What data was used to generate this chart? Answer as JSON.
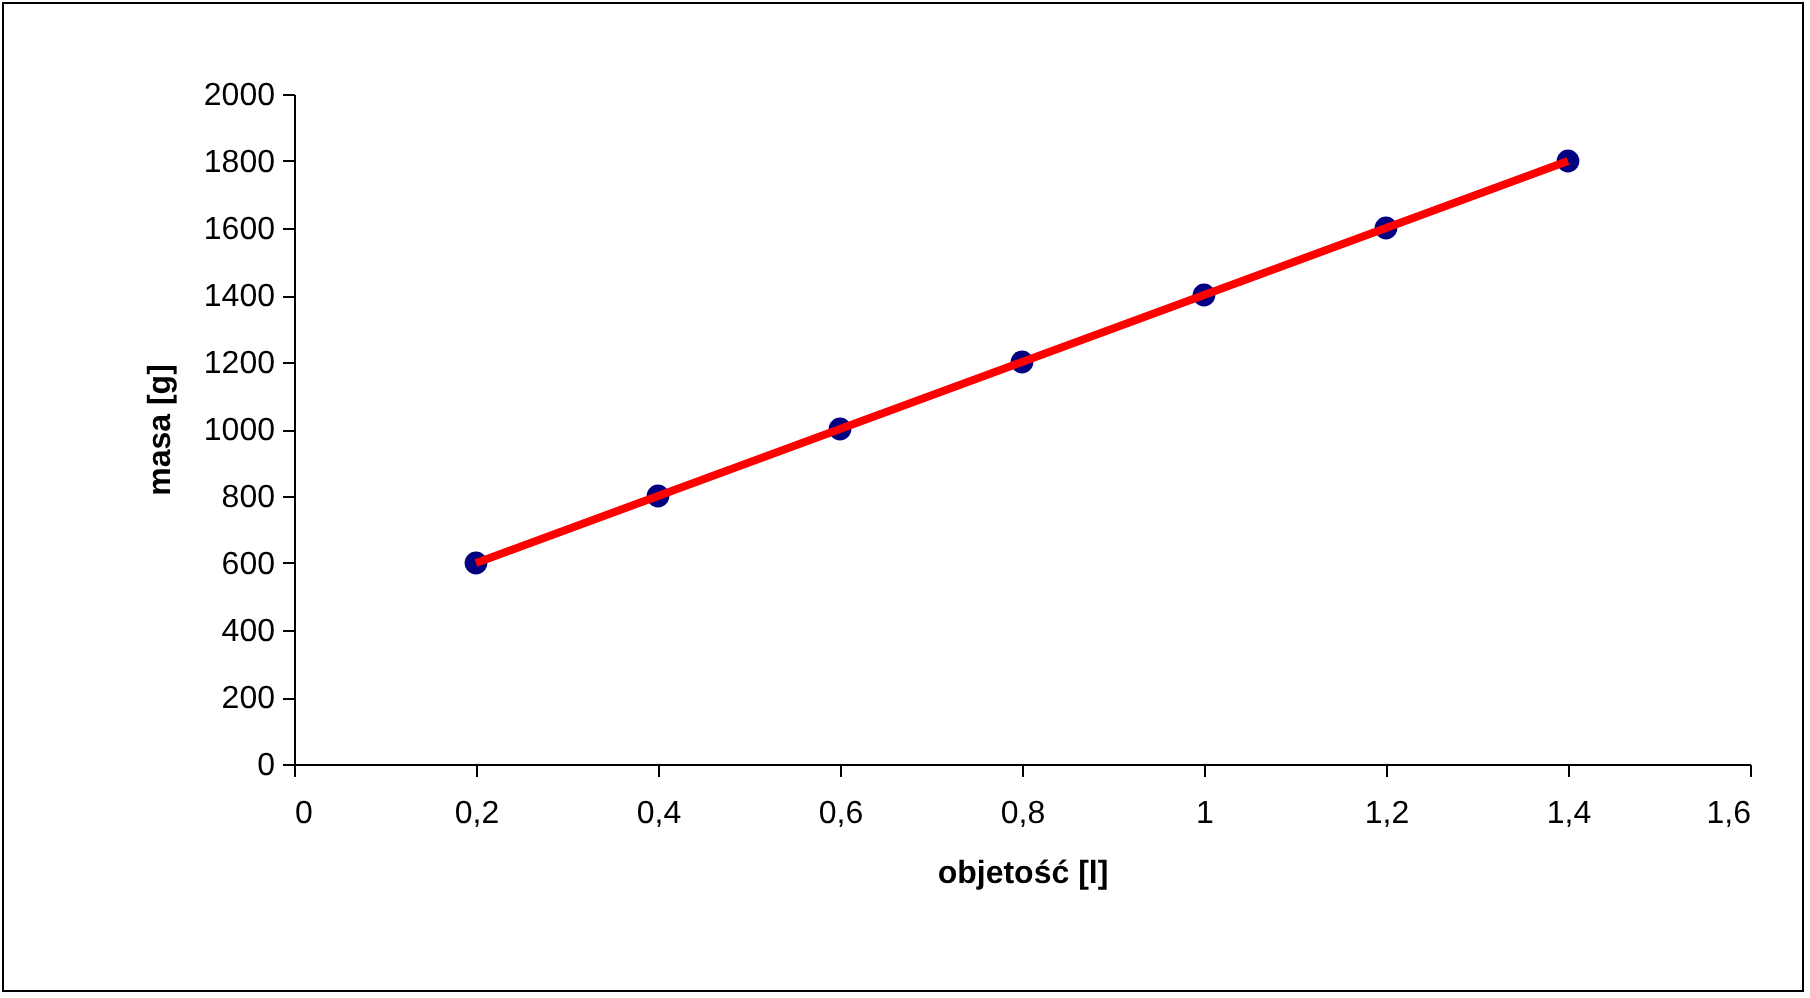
{
  "chart_data": {
    "type": "scatter",
    "xlabel": "objetość [l]",
    "ylabel": "masa [g]",
    "x": [
      0.2,
      0.4,
      0.6,
      0.8,
      1.0,
      1.2,
      1.4
    ],
    "series": [
      {
        "type": "scatter",
        "color": "#000080",
        "marker": "circle",
        "values": [
          600,
          800,
          1000,
          1200,
          1400,
          1600,
          1800
        ]
      },
      {
        "type": "line",
        "color": "#ff0000",
        "line_style": "solid",
        "values": [
          600,
          800,
          1000,
          1200,
          1400,
          1600,
          1800
        ]
      }
    ],
    "xlim": [
      0,
      1.6
    ],
    "xticks": [
      0,
      {
        "value": 0.2,
        "label": "0,2"
      },
      {
        "value": 0.4,
        "label": "0,4"
      },
      {
        "value": 0.6,
        "label": "0,6"
      },
      {
        "value": 0.8,
        "label": "0,8"
      },
      1,
      {
        "value": 1.2,
        "label": "1,2"
      },
      {
        "value": 1.4,
        "label": "1,4"
      },
      {
        "value": 1.6,
        "label": "1,6"
      }
    ],
    "ylim": [
      0,
      2000
    ],
    "yticks": [
      0,
      200,
      400,
      600,
      800,
      1000,
      1200,
      1400,
      1600,
      1800,
      2000
    ]
  }
}
